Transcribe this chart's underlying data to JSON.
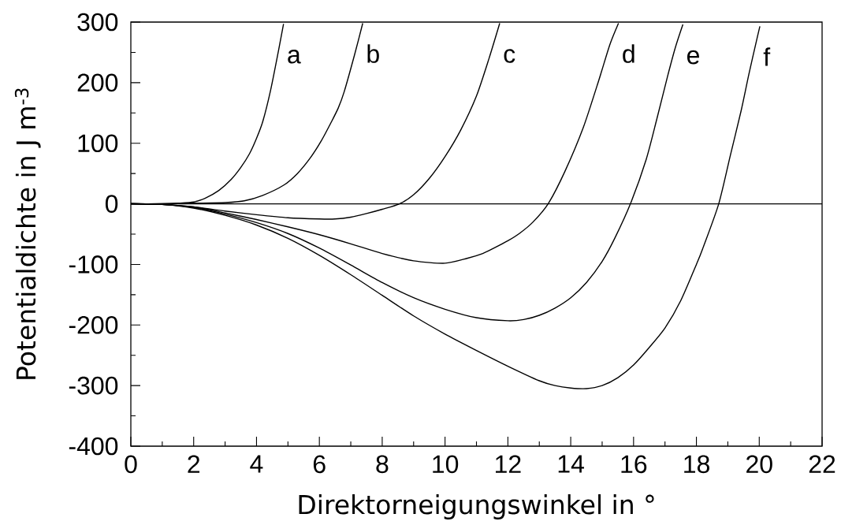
{
  "chart_data": {
    "type": "line",
    "xlabel": "Direktorneigungswinkel in °",
    "ylabel": "Potentialdichte in J m$^{-3}$",
    "xlim": [
      0,
      22
    ],
    "ylim": [
      -400,
      300
    ],
    "xticks": [
      0,
      2,
      4,
      6,
      8,
      10,
      12,
      14,
      16,
      18,
      20,
      22
    ],
    "yticks": [
      -400,
      -300,
      -200,
      -100,
      0,
      100,
      200,
      300
    ],
    "grid": false,
    "legend": false,
    "marker": "none",
    "line_style": "solid",
    "ref_lines": [
      {
        "axis": "y",
        "value": 0,
        "color": "#000000"
      }
    ],
    "series": [
      {
        "name": "a",
        "color": "#000000",
        "x": [
          0,
          1,
          1.5,
          2,
          2.36,
          2.8,
          3.19,
          3.5,
          3.78,
          4,
          4.2,
          4.45,
          4.7,
          4.86
        ],
        "values": [
          0,
          0,
          1,
          3,
          9,
          22,
          40,
          60,
          83,
          108,
          136,
          188,
          253,
          297
        ]
      },
      {
        "name": "b",
        "color": "#000000",
        "x": [
          0,
          1,
          2,
          3,
          3.61,
          4.2,
          4.87,
          5.3,
          5.7,
          6.05,
          6.37,
          6.6,
          6.79,
          7.12,
          7.38
        ],
        "values": [
          0,
          0,
          1,
          2,
          5,
          14,
          31,
          50,
          75,
          103,
          134,
          158,
          185,
          246,
          298
        ]
      },
      {
        "name": "c",
        "color": "#000000",
        "x": [
          0,
          1,
          2,
          3,
          4,
          5,
          6,
          6.5,
          7,
          7.5,
          8,
          8.55,
          9,
          9.5,
          10,
          10.5,
          11,
          11.4,
          11.74
        ],
        "values": [
          0,
          -1,
          -5,
          -12,
          -18,
          -23,
          -25,
          -25,
          -22,
          -16,
          -9,
          0,
          15,
          42,
          78,
          122,
          178,
          240,
          298
        ]
      },
      {
        "name": "d",
        "color": "#000000",
        "x": [
          0,
          1,
          2,
          3,
          4,
          5,
          6,
          7,
          8,
          9,
          10,
          10.7,
          11.2,
          11.56,
          12,
          12.39,
          12.8,
          13.28,
          13.81,
          14.4,
          14.9,
          15.24,
          15.52
        ],
        "values": [
          0,
          -1,
          -5,
          -15,
          -26,
          -38,
          -51,
          -66,
          -82,
          -94,
          -98,
          -90,
          -82,
          -73,
          -61,
          -48,
          -30,
          0,
          53,
          126,
          205,
          262,
          298
        ]
      },
      {
        "name": "e",
        "color": "#000000",
        "x": [
          0,
          1,
          2,
          3,
          4,
          5,
          6,
          7,
          8,
          9,
          10,
          11,
          12,
          12.5,
          13,
          13.5,
          14,
          14.5,
          15,
          15.4,
          15.9,
          16.4,
          16.74,
          17.08,
          17.33,
          17.57
        ],
        "values": [
          0,
          -1,
          -6,
          -17,
          -31,
          -49,
          -73,
          -101,
          -130,
          -155,
          -174,
          -188,
          -193,
          -191,
          -184,
          -172,
          -155,
          -130,
          -95,
          -57,
          0,
          73,
          140,
          210,
          258,
          296
        ]
      },
      {
        "name": "f",
        "color": "#000000",
        "x": [
          0,
          1,
          2,
          3,
          4,
          5,
          6,
          7,
          8,
          9,
          10,
          11,
          12,
          13,
          13.5,
          14,
          14.5,
          15,
          15.5,
          16,
          16.5,
          17,
          17.5,
          18,
          18.2,
          18.71,
          19.08,
          19.42,
          19.67,
          19.92,
          20.02
        ],
        "values": [
          0,
          -1,
          -7,
          -19,
          -35,
          -57,
          -85,
          -117,
          -151,
          -185,
          -215,
          -242,
          -268,
          -292,
          -300,
          -304,
          -305,
          -300,
          -287,
          -266,
          -237,
          -205,
          -160,
          -100,
          -74,
          0,
          80,
          153,
          214,
          271,
          293
        ]
      }
    ]
  }
}
